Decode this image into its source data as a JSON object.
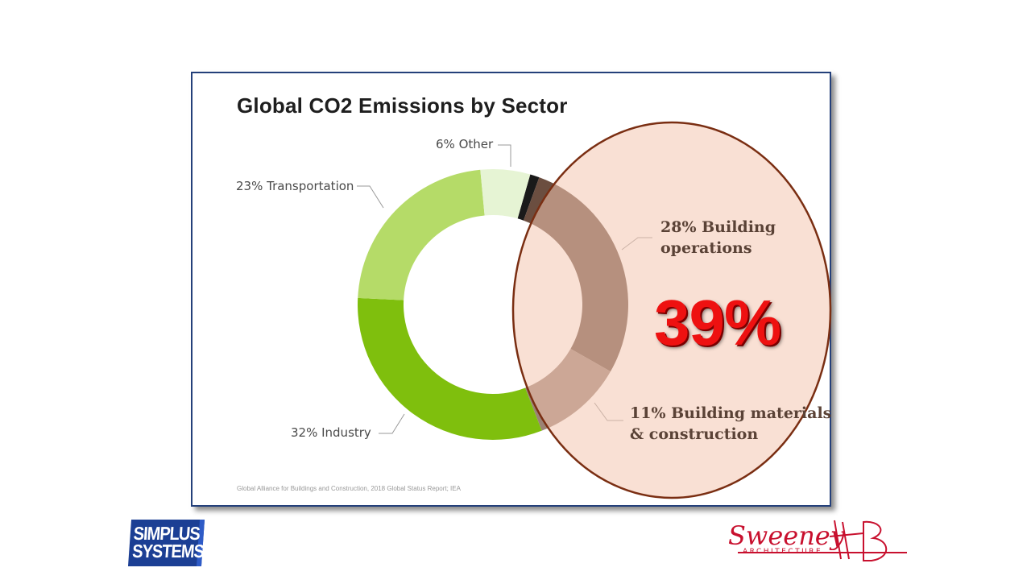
{
  "chart_data": {
    "type": "pie",
    "variant": "donut",
    "title": "Global CO2 Emissions by Sector",
    "categories": [
      "Building operations",
      "Building materials & construction",
      "Industry",
      "Transportation",
      "Other"
    ],
    "values": [
      28,
      11,
      32,
      23,
      6
    ],
    "unit": "%",
    "colors": [
      "#6b4e40",
      "#9b8275",
      "#7fbf0d",
      "#b5db68",
      "#e6f4d4"
    ],
    "labels": {
      "other": "6% Other",
      "transportation": "23% Transportation",
      "industry": "32% Industry",
      "building_ops_line1": "28% Building",
      "building_ops_line2": "operations",
      "building_mat_line1": "11% Building materials",
      "building_mat_line2": "& construction"
    },
    "source": "Global Alliance for Buildings and Construction, 2018 Global Status Report; IEA",
    "annotation": {
      "text": "39%",
      "highlighted": [
        "Building operations",
        "Building materials & construction"
      ],
      "ellipse_fill": "#f4c6b0",
      "ellipse_stroke": "#7a2e12",
      "text_color": "#ee1111"
    }
  },
  "logos": {
    "left": {
      "line1": "SIMPLUS",
      "line2": "SYSTEMS",
      "color": "#1c3f94"
    },
    "right": {
      "name": "Sweeney",
      "tagline": "ARCHITECTURE",
      "color": "#c8102e"
    }
  }
}
